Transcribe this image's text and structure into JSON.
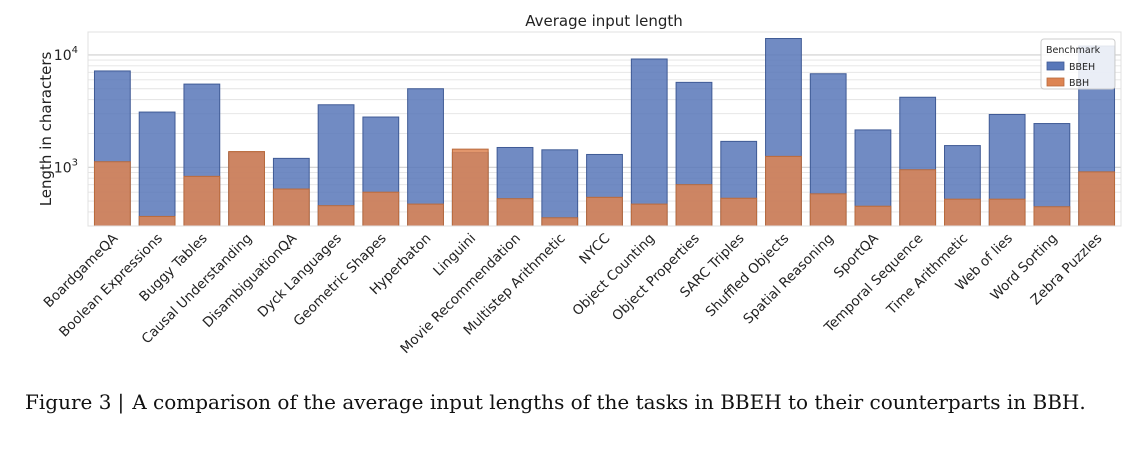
{
  "chart_data": {
    "type": "bar",
    "title": "Average input length",
    "xlabel": "",
    "ylabel": "Length in characters",
    "yscale": "log",
    "ylim": [
      300,
      16000
    ],
    "yticks": [
      {
        "value": 1000,
        "base": "10",
        "exp": "3"
      },
      {
        "value": 10000,
        "base": "10",
        "exp": "4"
      }
    ],
    "grid": true,
    "legend_title": "Benchmark",
    "legend_position": "top-right",
    "categories": [
      "BoardgameQA",
      "Boolean Expressions",
      "Buggy Tables",
      "Causal Understanding",
      "DisambiguationQA",
      "Dyck Languages",
      "Geometric Shapes",
      "Hyperbaton",
      "Linguini",
      "Movie Recommendation",
      "Multistep Arithmetic",
      "NYCC",
      "Object Counting",
      "Object Properties",
      "SARC Triples",
      "Shuffled Objects",
      "Spatial Reasoning",
      "SportQA",
      "Temporal Sequence",
      "Time Arithmetic",
      "Web of lies",
      "Word Sorting",
      "Zebra Puzzles"
    ],
    "series": [
      {
        "name": "BBEH",
        "color": "#5877b9",
        "edge": "#3f5a95",
        "values": [
          7200,
          3100,
          5500,
          1350,
          1200,
          3600,
          2800,
          5000,
          1350,
          1500,
          1430,
          1300,
          9200,
          5700,
          1700,
          14000,
          6800,
          2150,
          4200,
          1560,
          2950,
          2450,
          12000
        ]
      },
      {
        "name": "BBH",
        "color": "#dd8452",
        "edge": "#b96a3c",
        "values": [
          1120,
          365,
          830,
          1380,
          640,
          455,
          600,
          470,
          1450,
          525,
          355,
          540,
          470,
          700,
          530,
          1250,
          580,
          450,
          950,
          520,
          520,
          445,
          910
        ]
      }
    ]
  },
  "caption": {
    "label": "Figure 3",
    "separator": "|",
    "text": "A comparison of the average input lengths of the tasks in BBEH to their counterparts in BBH."
  }
}
